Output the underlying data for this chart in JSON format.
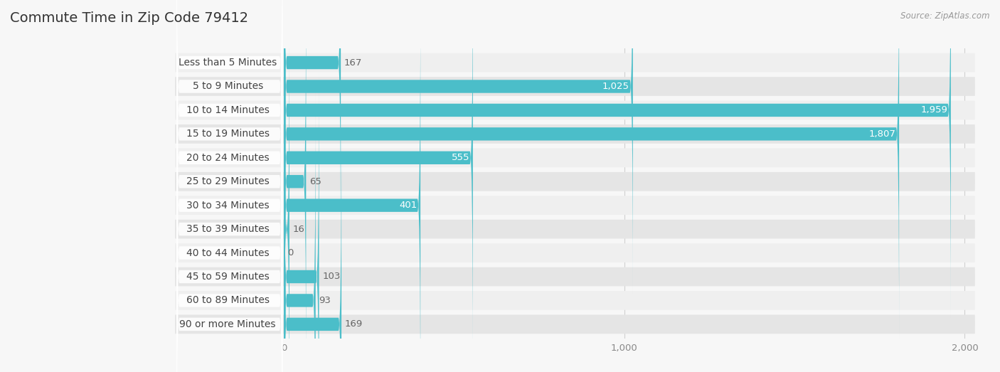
{
  "title": "Commute Time in Zip Code 79412",
  "source": "Source: ZipAtlas.com",
  "categories": [
    "Less than 5 Minutes",
    "5 to 9 Minutes",
    "10 to 14 Minutes",
    "15 to 19 Minutes",
    "20 to 24 Minutes",
    "25 to 29 Minutes",
    "30 to 34 Minutes",
    "35 to 39 Minutes",
    "40 to 44 Minutes",
    "45 to 59 Minutes",
    "60 to 89 Minutes",
    "90 or more Minutes"
  ],
  "values": [
    167,
    1025,
    1959,
    1807,
    555,
    65,
    401,
    16,
    0,
    103,
    93,
    169
  ],
  "bar_color": "#4bbec9",
  "row_bg_even": "#efefef",
  "row_bg_odd": "#e5e5e5",
  "background_color": "#f7f7f7",
  "title_color": "#333333",
  "label_color": "#444444",
  "value_color_inside": "#ffffff",
  "value_color_outside": "#666666",
  "grid_color": "#d0d0d0",
  "xlim_max": 2000,
  "xticks": [
    0,
    1000,
    2000
  ],
  "title_fontsize": 14,
  "label_fontsize": 10,
  "value_fontsize": 9.5,
  "source_fontsize": 8.5,
  "inside_threshold": 300
}
